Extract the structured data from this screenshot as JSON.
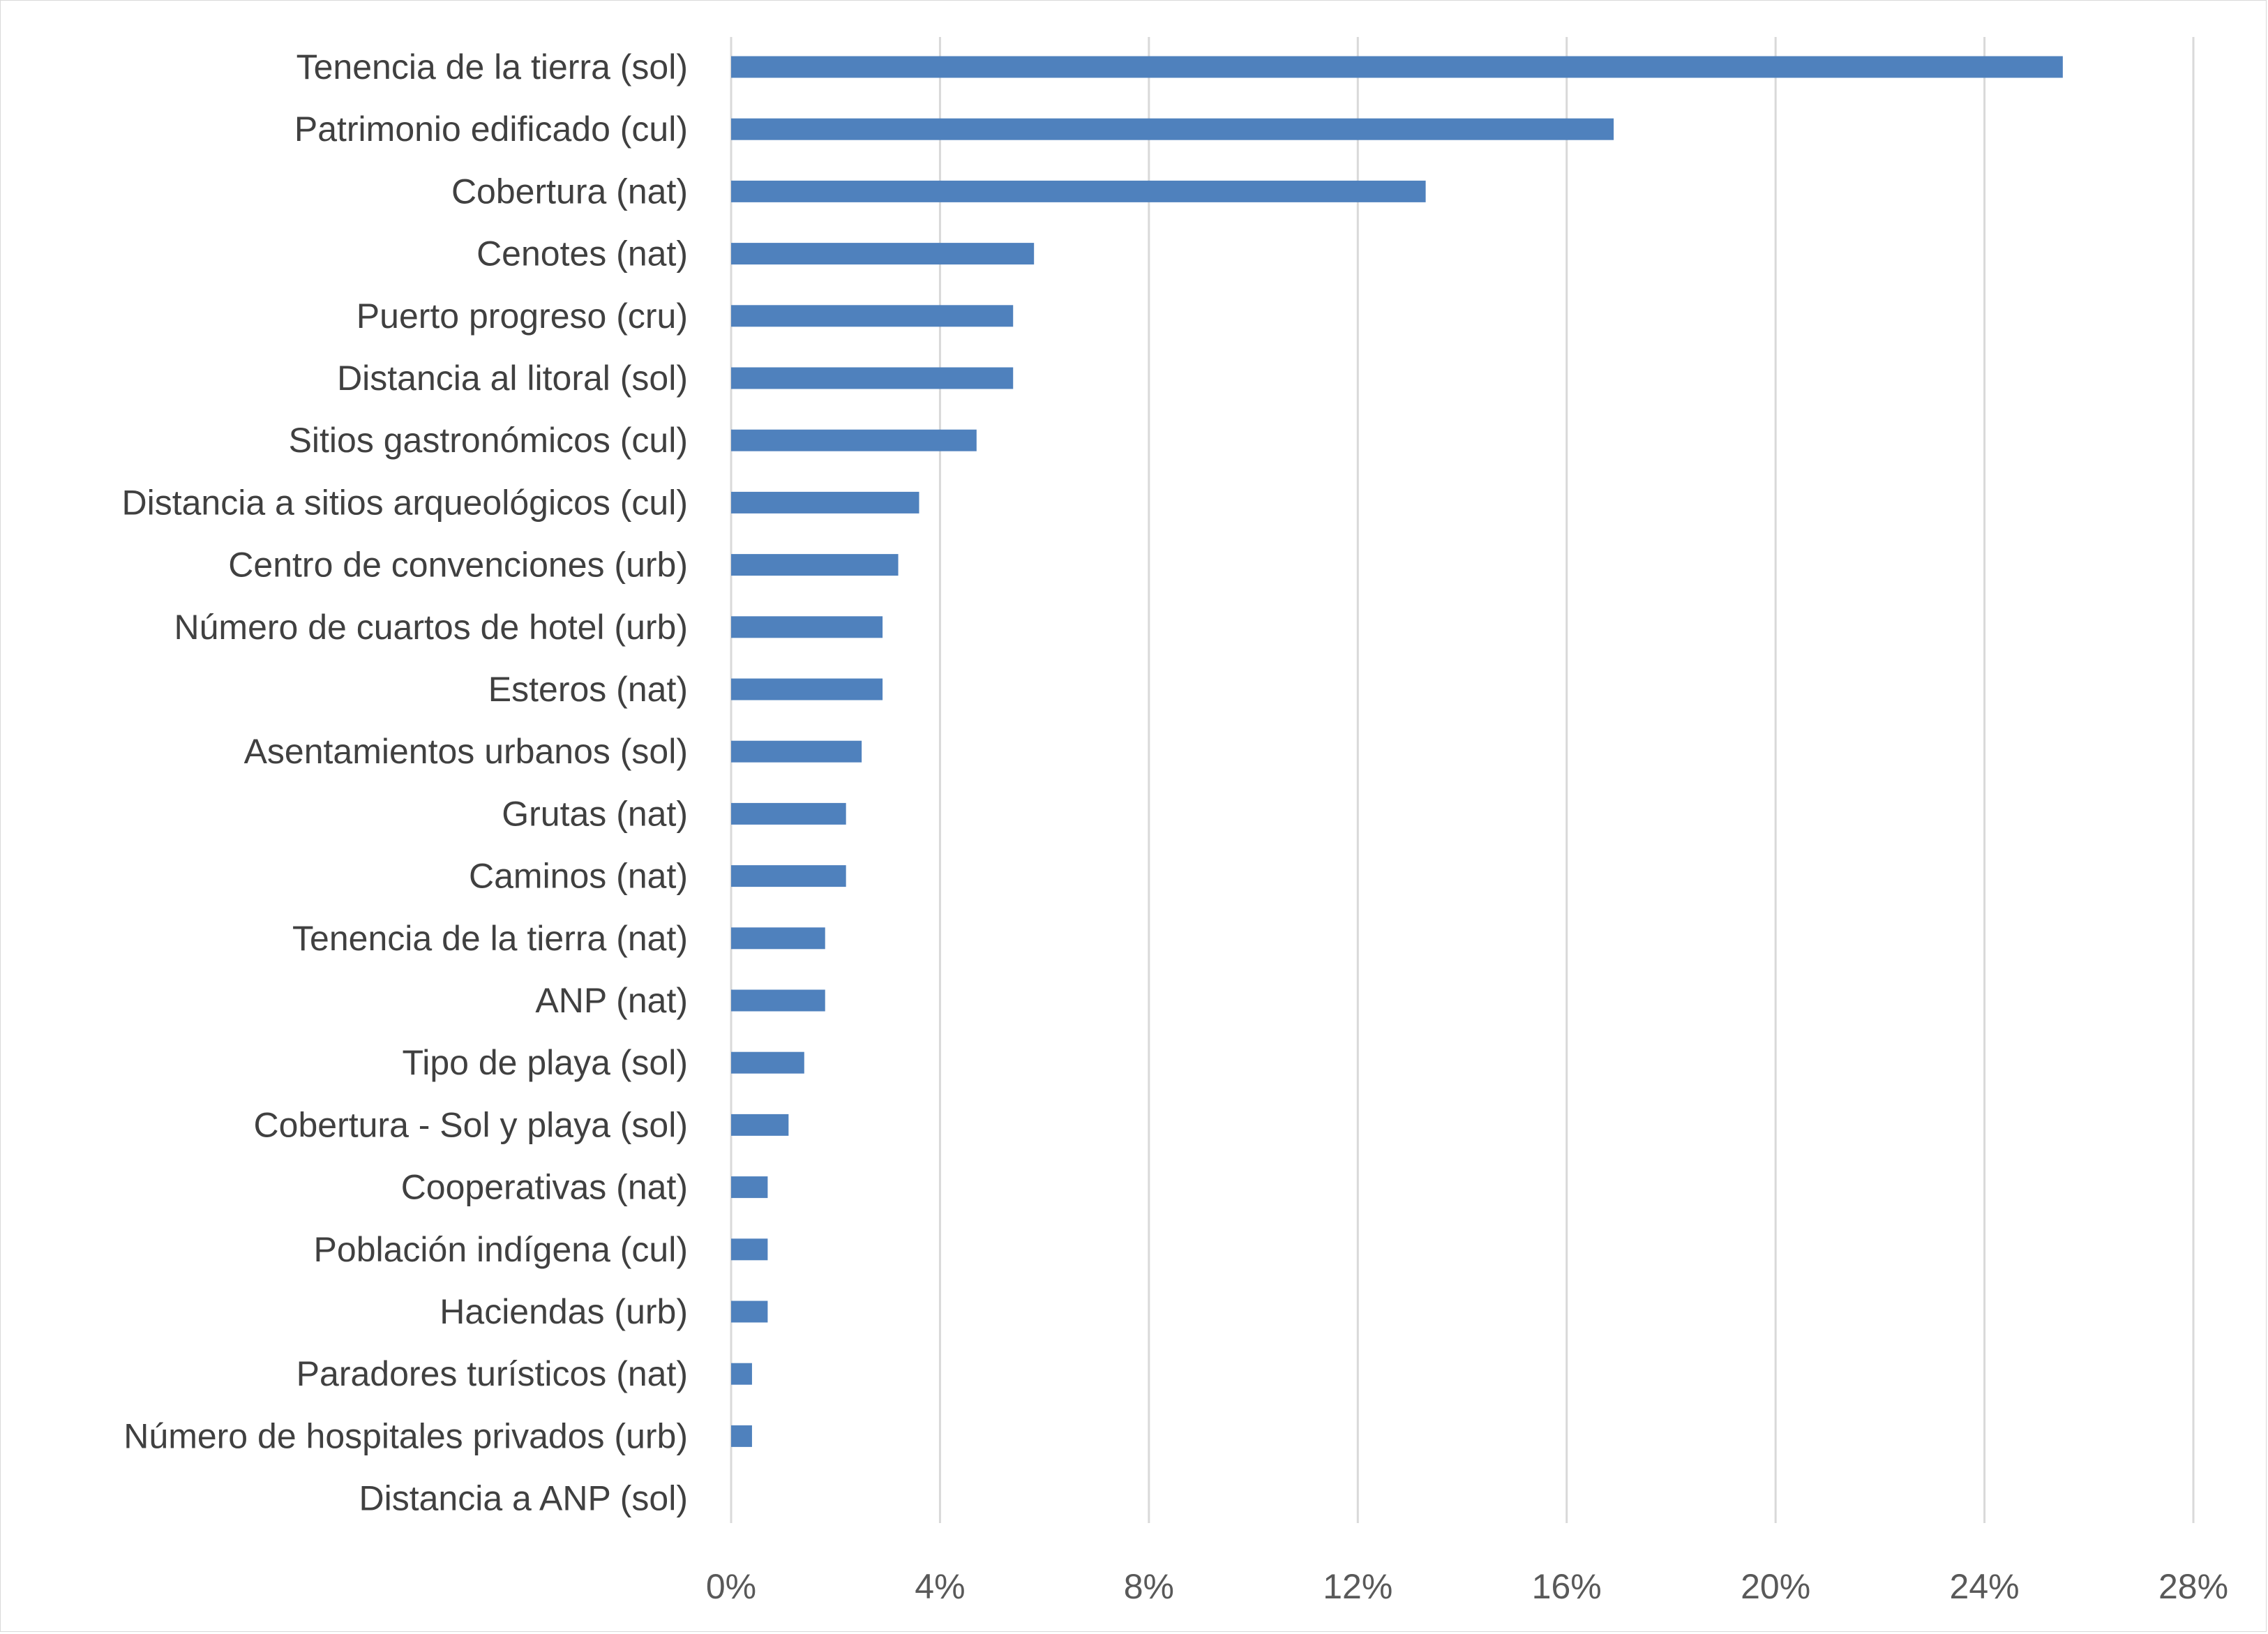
{
  "chart_data": {
    "type": "bar",
    "orientation": "horizontal",
    "categories": [
      "Tenencia de la tierra  (sol)",
      "Patrimonio edificado (cul)",
      "Cobertura (nat)",
      "Cenotes (nat)",
      "Puerto progreso (cru)",
      "Distancia al litoral (sol)",
      "Sitios gastronómicos (cul)",
      "Distancia a sitios arqueológicos (cul)",
      "Centro de convenciones (urb)",
      "Número de cuartos de hotel (urb)",
      "Esteros (nat)",
      "Asentamientos urbanos  (sol)",
      "Grutas (nat)",
      "Caminos (nat)",
      "Tenencia de la tierra (nat)",
      "ANP (nat)",
      "Tipo de playa  (sol)",
      "Cobertura - Sol y playa  (sol)",
      "Cooperativas (nat)",
      "Población indígena (cul)",
      "Haciendas (urb)",
      "Paradores turísticos (nat)",
      "Número de hospitales privados (urb)",
      "Distancia a ANP  (sol)"
    ],
    "values": [
      25.5,
      16.9,
      13.3,
      5.8,
      5.4,
      5.4,
      4.7,
      3.6,
      3.2,
      2.9,
      2.9,
      2.5,
      2.2,
      2.2,
      1.8,
      1.8,
      1.4,
      1.1,
      0.7,
      0.7,
      0.7,
      0.4,
      0.4,
      0.0
    ],
    "xlim": [
      0,
      28
    ],
    "xticks": [
      0,
      4,
      8,
      12,
      16,
      20,
      24,
      28
    ],
    "tick_labels": [
      "0%",
      "4%",
      "8%",
      "12%",
      "16%",
      "20%",
      "24%",
      "28%"
    ],
    "grid": true,
    "legend": "none",
    "bar_color": "#4f81bd",
    "title": "",
    "xlabel": "",
    "ylabel": ""
  }
}
